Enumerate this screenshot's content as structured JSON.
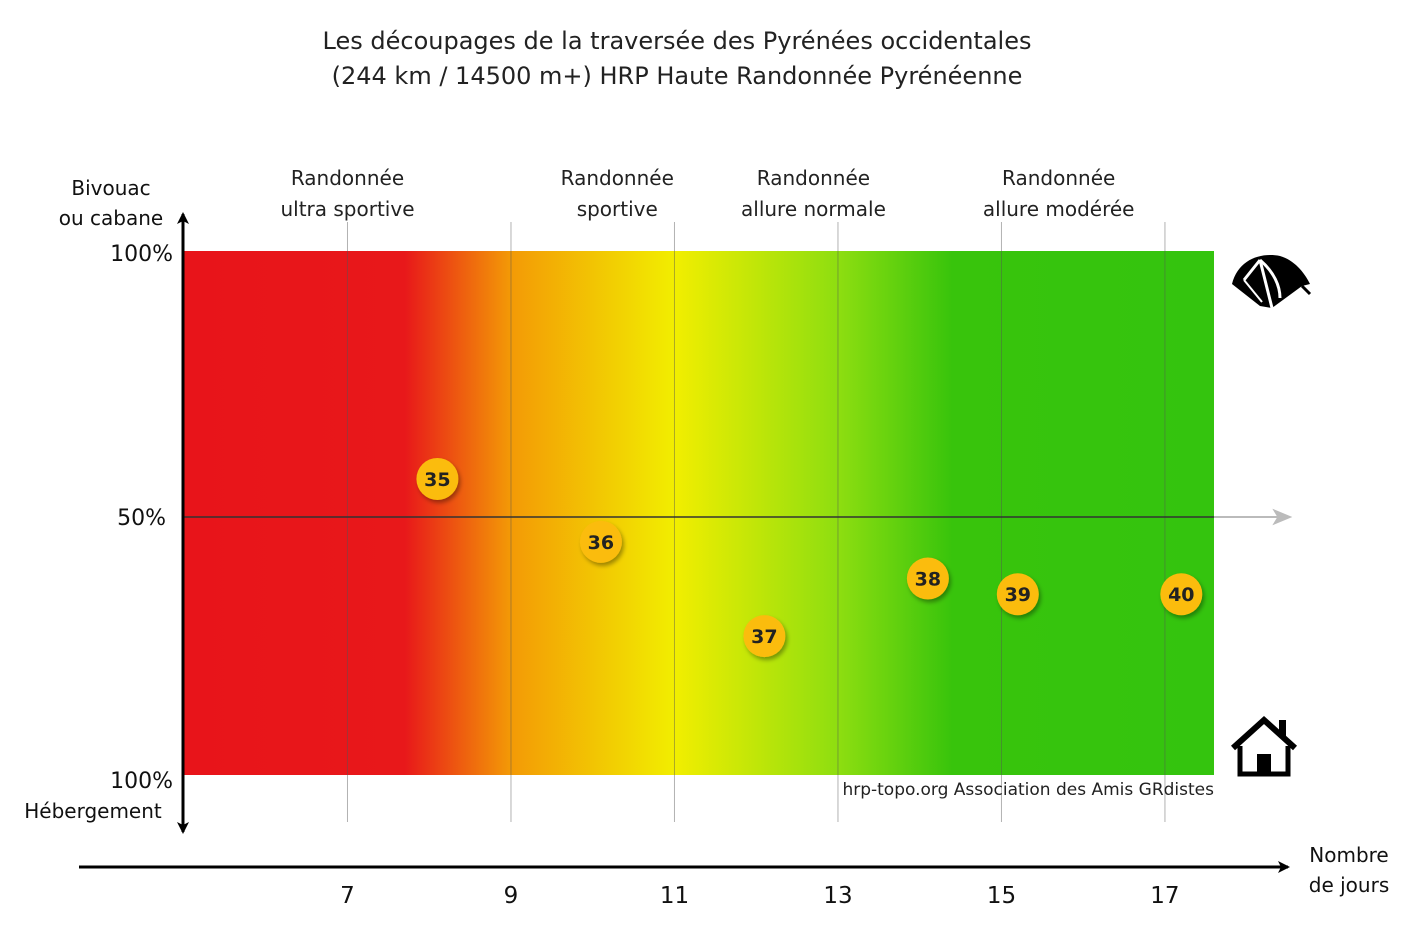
{
  "chart_data": {
    "type": "scatter",
    "title": "Les découpages de la traversée des Pyrénées occidentales",
    "subtitle": "(244 km / 14500 m+) HRP Haute Randonnée Pyrénéenne",
    "xlabel": [
      "Nombre",
      "de jours"
    ],
    "y_top_label": [
      "Bivouac",
      "ou cabane"
    ],
    "y_bottom_label": "Hébergement",
    "y_tick_labels": {
      "top": "100%",
      "middle": "50%",
      "bottom": "100%"
    },
    "xlim": [
      5,
      17.6
    ],
    "ylim": [
      -100,
      100
    ],
    "x_ticks": [
      7,
      9,
      11,
      13,
      15,
      17
    ],
    "grid": true,
    "zones": [
      {
        "lines": [
          "Randonnée",
          "ultra sportive"
        ],
        "center": 7
      },
      {
        "lines": [
          "Randonnée",
          "sportive"
        ],
        "center": 10.3
      },
      {
        "lines": [
          "Randonnée",
          "allure normale"
        ],
        "center": 12.7
      },
      {
        "lines": [
          "Randonnée",
          "allure modérée"
        ],
        "center": 15.7
      }
    ],
    "gradient": [
      {
        "x": 5,
        "color": "#e8141a"
      },
      {
        "x": 7.7,
        "color": "#e8181a"
      },
      {
        "x": 9,
        "color": "#f39a06"
      },
      {
        "x": 11,
        "color": "#f2ee00"
      },
      {
        "x": 13,
        "color": "#8ede10"
      },
      {
        "x": 14.4,
        "color": "#38c40c"
      },
      {
        "x": 17.6,
        "color": "#34c40e"
      }
    ],
    "points": [
      {
        "label": "35",
        "x": 8.1,
        "y": 13
      },
      {
        "label": "36",
        "x": 10.1,
        "y": -11
      },
      {
        "label": "37",
        "x": 12.1,
        "y": -47
      },
      {
        "label": "38",
        "x": 14.1,
        "y": -25
      },
      {
        "label": "39",
        "x": 15.2,
        "y": -31
      },
      {
        "label": "40",
        "x": 17.2,
        "y": -31
      }
    ],
    "marker_color": "#fbbc09",
    "credit": "hrp-topo.org Association des Amis GRdistes",
    "icons": {
      "top": "tent-icon",
      "bottom": "house-icon"
    }
  }
}
